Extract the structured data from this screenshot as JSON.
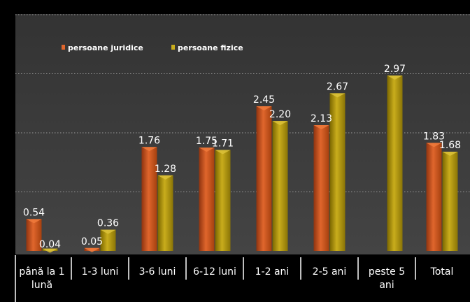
{
  "chart_data": {
    "type": "bar",
    "categories": [
      [
        "până la 1",
        "lună"
      ],
      [
        "1-3 luni"
      ],
      [
        "3-6 luni"
      ],
      [
        "6-12 luni"
      ],
      [
        "1-2 ani"
      ],
      [
        "2-5 ani"
      ],
      [
        "peste 5",
        "ani"
      ],
      [
        "Total"
      ]
    ],
    "series": [
      {
        "name": "persoane juridice",
        "values": [
          0.54,
          0.05,
          1.76,
          1.75,
          2.45,
          2.13,
          null,
          1.83
        ]
      },
      {
        "name": "persoane fizice",
        "values": [
          0.04,
          0.36,
          1.28,
          1.71,
          2.2,
          2.67,
          2.97,
          1.68
        ]
      }
    ],
    "value_labels": [
      [
        "0.54",
        "0.05",
        "1.76",
        "1.75",
        "2.45",
        "2.13",
        null,
        "1.83"
      ],
      [
        "0.04",
        "0.36",
        "1.28",
        "1.71",
        "2.20",
        "2.67",
        "2.97",
        "1.68"
      ]
    ],
    "ylim": [
      0,
      3.5
    ],
    "grid": true,
    "legend_position": "top-left",
    "colors": {
      "juridice": "#c8501e",
      "fizice": "#a8900a",
      "plot_bg": "#3c3c3c",
      "frame": "#000000",
      "text": "#ffffff"
    }
  }
}
